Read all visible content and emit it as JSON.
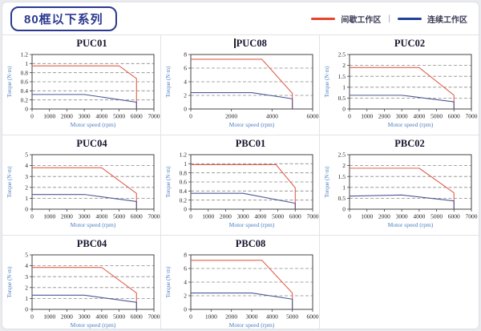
{
  "page": {
    "title_badge": "80框以下系列"
  },
  "legend": {
    "separator": "|",
    "items": [
      {
        "label": "间歇工作区",
        "color": "#e8432b"
      },
      {
        "label": "连续工作区",
        "color": "#21409a"
      }
    ]
  },
  "style": {
    "intermittent_curve_color": "#e2604e",
    "continuous_curve_color": "#4d5895",
    "axis_color": "#444444",
    "gridline_color": "#8a8a8a",
    "tick_text_color": "#222222",
    "axis_label_color": "#4d7fc1"
  },
  "chart_data": [
    {
      "type": "line",
      "title": "PUC01",
      "title_cursor": false,
      "xlabel": "Motor speed (rpm)",
      "ylabel": "Torque (N·m)",
      "xlim": [
        0,
        7000
      ],
      "xticks": [
        0,
        1000,
        2000,
        3000,
        4000,
        5000,
        6000,
        7000
      ],
      "ylim": [
        0,
        1.2
      ],
      "yticks": [
        0,
        0.2,
        0.4,
        0.6,
        0.8,
        1,
        1.2
      ],
      "grid": "horizontal-dashed",
      "legend_position": "none",
      "series": [
        {
          "name": "间歇工作区",
          "role": "intermittent",
          "points": [
            [
              0,
              0.95
            ],
            [
              5000,
              0.95
            ],
            [
              6000,
              0.67
            ],
            [
              6000,
              0
            ]
          ]
        },
        {
          "name": "连续工作区",
          "role": "continuous",
          "points": [
            [
              0,
              0.32
            ],
            [
              3000,
              0.32
            ],
            [
              6000,
              0.15
            ],
            [
              6000,
              0
            ]
          ]
        }
      ]
    },
    {
      "type": "line",
      "title": "PUC08",
      "title_cursor": true,
      "xlabel": "Motor speed (rpm)",
      "ylabel": "Torque (N·m)",
      "xlim": [
        0,
        6000
      ],
      "xticks": [
        0,
        2000,
        4000,
        6000
      ],
      "ylim": [
        0,
        8
      ],
      "yticks": [
        0,
        2,
        4,
        6,
        8
      ],
      "grid": "horizontal-dashed",
      "legend_position": "none",
      "series": [
        {
          "name": "间歇工作区",
          "role": "intermittent",
          "points": [
            [
              0,
              7.3
            ],
            [
              3500,
              7.3
            ],
            [
              5000,
              2.3
            ],
            [
              5000,
              0
            ]
          ]
        },
        {
          "name": "连续工作区",
          "role": "continuous",
          "points": [
            [
              0,
              2.4
            ],
            [
              3000,
              2.4
            ],
            [
              5000,
              1.5
            ],
            [
              5000,
              0
            ]
          ]
        }
      ]
    },
    {
      "type": "line",
      "title": "PUC02",
      "title_cursor": false,
      "xlabel": "Motor speed (rpm)",
      "ylabel": "Torque (N·m)",
      "xlim": [
        0,
        7000
      ],
      "xticks": [
        0,
        1000,
        2000,
        3000,
        4000,
        5000,
        6000,
        7000
      ],
      "ylim": [
        0,
        2.5
      ],
      "yticks": [
        0,
        0.5,
        1,
        1.5,
        2,
        2.5
      ],
      "grid": "horizontal-dashed",
      "legend_position": "none",
      "series": [
        {
          "name": "间歇工作区",
          "role": "intermittent",
          "points": [
            [
              0,
              1.9
            ],
            [
              4000,
              1.9
            ],
            [
              6000,
              0.63
            ],
            [
              6000,
              0
            ]
          ]
        },
        {
          "name": "连续工作区",
          "role": "continuous",
          "points": [
            [
              0,
              0.63
            ],
            [
              3000,
              0.63
            ],
            [
              6000,
              0.33
            ],
            [
              6000,
              0
            ]
          ]
        }
      ]
    },
    {
      "type": "line",
      "title": "PUC04",
      "title_cursor": false,
      "xlabel": "Motor speed (rpm)",
      "ylabel": "Torque (N·m)",
      "xlim": [
        0,
        7000
      ],
      "xticks": [
        0,
        1000,
        2000,
        3000,
        4000,
        5000,
        6000,
        7000
      ],
      "ylim": [
        0,
        5
      ],
      "yticks": [
        0,
        1,
        2,
        3,
        4,
        5
      ],
      "grid": "horizontal-dashed",
      "legend_position": "none",
      "series": [
        {
          "name": "间歇工作区",
          "role": "intermittent",
          "points": [
            [
              0,
              3.8
            ],
            [
              4000,
              3.8
            ],
            [
              6000,
              1.45
            ],
            [
              6000,
              0
            ]
          ]
        },
        {
          "name": "连续工作区",
          "role": "continuous",
          "points": [
            [
              0,
              1.35
            ],
            [
              3000,
              1.35
            ],
            [
              6000,
              0.7
            ],
            [
              6000,
              0
            ]
          ]
        }
      ]
    },
    {
      "type": "line",
      "title": "PBC01",
      "title_cursor": false,
      "xlabel": "Motor speed (rpm)",
      "ylabel": "Torque (N·m)",
      "xlim": [
        0,
        7000
      ],
      "xticks": [
        0,
        1000,
        2000,
        3000,
        4000,
        5000,
        6000,
        7000
      ],
      "ylim": [
        0,
        1.2
      ],
      "yticks": [
        0,
        0.2,
        0.4,
        0.6,
        0.8,
        1,
        1.2
      ],
      "grid": "horizontal-dashed",
      "legend_position": "none",
      "series": [
        {
          "name": "间歇工作区",
          "role": "intermittent",
          "points": [
            [
              0,
              0.98
            ],
            [
              4900,
              0.98
            ],
            [
              6000,
              0.47
            ],
            [
              6000,
              0
            ]
          ]
        },
        {
          "name": "连续工作区",
          "role": "continuous",
          "points": [
            [
              0,
              0.35
            ],
            [
              3000,
              0.35
            ],
            [
              6000,
              0.13
            ],
            [
              6000,
              0
            ]
          ]
        }
      ]
    },
    {
      "type": "line",
      "title": "PBC02",
      "title_cursor": false,
      "xlabel": "Motor speed (rpm)",
      "ylabel": "Torque (N·m)",
      "xlim": [
        0,
        7000
      ],
      "xticks": [
        0,
        1000,
        2000,
        3000,
        4000,
        5000,
        6000,
        7000
      ],
      "ylim": [
        0,
        2.5
      ],
      "yticks": [
        0,
        0.5,
        1,
        1.5,
        2,
        2.5
      ],
      "grid": "horizontal-dashed",
      "legend_position": "none",
      "series": [
        {
          "name": "间歇工作区",
          "role": "intermittent",
          "points": [
            [
              0,
              1.88
            ],
            [
              4000,
              1.88
            ],
            [
              6000,
              0.75
            ],
            [
              6000,
              0
            ]
          ]
        },
        {
          "name": "连续工作区",
          "role": "continuous",
          "points": [
            [
              0,
              0.6
            ],
            [
              3000,
              0.65
            ],
            [
              6000,
              0.38
            ],
            [
              6000,
              0
            ]
          ]
        }
      ]
    },
    {
      "type": "line",
      "title": "PBC04",
      "title_cursor": false,
      "xlabel": "Motor speed (rpm)",
      "ylabel": "Torque (N·m)",
      "xlim": [
        0,
        7000
      ],
      "xticks": [
        0,
        1000,
        2000,
        3000,
        4000,
        5000,
        6000,
        7000
      ],
      "ylim": [
        0,
        5
      ],
      "yticks": [
        0,
        1,
        2,
        3,
        4,
        5
      ],
      "grid": "horizontal-dashed",
      "legend_position": "none",
      "series": [
        {
          "name": "间歇工作区",
          "role": "intermittent",
          "points": [
            [
              0,
              3.85
            ],
            [
              4000,
              3.85
            ],
            [
              6000,
              1.5
            ],
            [
              6000,
              0
            ]
          ]
        },
        {
          "name": "连续工作区",
          "role": "continuous",
          "points": [
            [
              0,
              1.3
            ],
            [
              3000,
              1.3
            ],
            [
              6000,
              0.65
            ],
            [
              6000,
              0
            ]
          ]
        }
      ]
    },
    {
      "type": "line",
      "title": "PBC08",
      "title_cursor": false,
      "xlabel": "Motor speed (rpm)",
      "ylabel": "Torque (N·m)",
      "xlim": [
        0,
        6000
      ],
      "xticks": [
        0,
        1000,
        2000,
        3000,
        4000,
        5000,
        6000
      ],
      "ylim": [
        0,
        8
      ],
      "yticks": [
        0,
        2,
        4,
        6,
        8
      ],
      "grid": "horizontal-dashed",
      "legend_position": "none",
      "series": [
        {
          "name": "间歇工作区",
          "role": "intermittent",
          "points": [
            [
              0,
              7.2
            ],
            [
              3500,
              7.2
            ],
            [
              5000,
              2.4
            ],
            [
              5000,
              0
            ]
          ]
        },
        {
          "name": "连续工作区",
          "role": "continuous",
          "points": [
            [
              0,
              2.4
            ],
            [
              3000,
              2.4
            ],
            [
              5000,
              1.5
            ],
            [
              5000,
              0
            ]
          ]
        }
      ]
    }
  ]
}
